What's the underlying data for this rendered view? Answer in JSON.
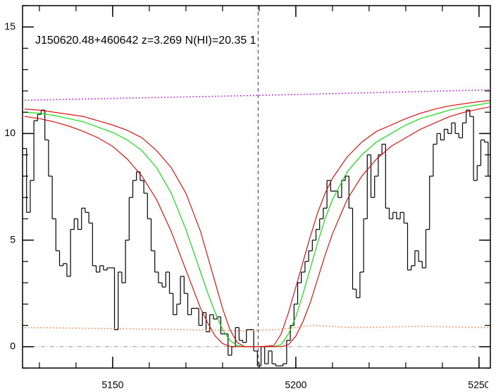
{
  "chart_data": {
    "type": "line",
    "annotation": "J150620.48+460642 z=3.269 N(HI)=20.35 1",
    "xlim": [
      5125.4,
      5253.1
    ],
    "ylim": [
      -1,
      16
    ],
    "xticks": [
      5150,
      5200,
      5250
    ],
    "yticks": [
      0,
      5,
      10,
      15
    ],
    "xminor_step": 10,
    "yminor_step": 1,
    "hlines": [
      0
    ],
    "vlines": [
      5189.7
    ],
    "x": [
      5126,
      5127,
      5128,
      5129,
      5130,
      5131,
      5132,
      5133,
      5134,
      5135,
      5136,
      5137,
      5138,
      5139,
      5140,
      5141,
      5142,
      5143,
      5144,
      5145,
      5146,
      5147,
      5148,
      5149,
      5150,
      5151,
      5152,
      5153,
      5154,
      5155,
      5156,
      5157,
      5158,
      5159,
      5160,
      5161,
      5162,
      5163,
      5164,
      5165,
      5166,
      5167,
      5168,
      5169,
      5170,
      5171,
      5172,
      5173,
      5174,
      5175,
      5176,
      5177,
      5178,
      5179,
      5180,
      5181,
      5182,
      5183,
      5184,
      5185,
      5186,
      5187,
      5188,
      5189,
      5190,
      5191,
      5192,
      5193,
      5194,
      5195,
      5196,
      5197,
      5198,
      5199,
      5200,
      5201,
      5202,
      5203,
      5204,
      5205,
      5206,
      5207,
      5208,
      5209,
      5210,
      5211,
      5212,
      5213,
      5214,
      5215,
      5216,
      5217,
      5218,
      5219,
      5220,
      5221,
      5222,
      5223,
      5224,
      5225,
      5226,
      5227,
      5228,
      5229,
      5230,
      5231,
      5232,
      5233,
      5234,
      5235,
      5236,
      5237,
      5238,
      5239,
      5240,
      5241,
      5242,
      5243,
      5244,
      5245,
      5246,
      5247,
      5248,
      5249,
      5250,
      5251,
      5252,
      5253
    ],
    "series": [
      {
        "color": "#000000",
        "style": "step",
        "values": [
          9.3,
          6.3,
          7.8,
          10.6,
          10.9,
          11.1,
          9.7,
          8.0,
          6.0,
          4.5,
          3.8,
          3.9,
          3.3,
          5.5,
          6.0,
          5.5,
          6.5,
          6.3,
          5.8,
          3.8,
          3.5,
          3.8,
          3.6,
          3.7,
          3.7,
          0.8,
          3.5,
          3.0,
          5.0,
          7.0,
          7.8,
          8.2,
          7.8,
          7.2,
          6.0,
          4.5,
          3.5,
          3.0,
          2.8,
          3.5,
          2.5,
          1.5,
          2.0,
          3.3,
          2.5,
          1.5,
          1.8,
          1.8,
          1.0,
          1.6,
          0.7,
          1.5,
          1.3,
          1.4,
          0.6,
          0.6,
          -0.4,
          0.0,
          0.9,
          0.3,
          0.2,
          0.8,
          0.8,
          -0.2,
          -0.9,
          0.0,
          -0.8,
          -0.2,
          -0.8,
          -0.9,
          -0.9,
          -0.8,
          0.3,
          1.0,
          2.0,
          3.0,
          3.5,
          4.0,
          4.5,
          5.0,
          5.5,
          6.0,
          6.5,
          7.8,
          7.3,
          7.3,
          7.0,
          7.8,
          8.0,
          6.5,
          2.7,
          2.3,
          3.5,
          6.0,
          9.0,
          7.0,
          8.0,
          9.0,
          9.5,
          6.5,
          6.0,
          6.3,
          6.0,
          6.3,
          5.8,
          3.6,
          3.8,
          4.5,
          4.0,
          3.7,
          5.5,
          8.0,
          9.5,
          10.0,
          9.7,
          10.2,
          10.0,
          10.5,
          10.0,
          9.8,
          10.5,
          11.1,
          10.8,
          7.8,
          8.5,
          9.7,
          9.6,
          8.0
        ]
      },
      {
        "color": "#00dd00",
        "style": "solid",
        "x": [
          5126,
          5130,
          5134,
          5138,
          5142,
          5146,
          5150,
          5154,
          5158,
          5162,
          5166,
          5170,
          5174,
          5176,
          5178,
          5180,
          5182,
          5184,
          5186,
          5190,
          5194,
          5196,
          5198,
          5200,
          5202,
          5204,
          5206,
          5208,
          5210,
          5214,
          5218,
          5222,
          5226,
          5230,
          5234,
          5238,
          5242,
          5246,
          5250,
          5253
        ],
        "values": [
          11.0,
          10.95,
          10.85,
          10.7,
          10.55,
          10.3,
          10.05,
          9.7,
          9.2,
          8.4,
          7.2,
          5.5,
          3.5,
          2.5,
          1.6,
          0.8,
          0.3,
          0.05,
          0,
          0,
          0,
          0.1,
          0.6,
          1.4,
          2.5,
          3.7,
          4.9,
          6.0,
          6.9,
          8.2,
          9.0,
          9.6,
          10.0,
          10.4,
          10.7,
          10.9,
          11.1,
          11.25,
          11.35,
          11.45
        ]
      },
      {
        "color": "#dd0000",
        "style": "solid",
        "x": [
          5126,
          5130,
          5134,
          5138,
          5142,
          5146,
          5150,
          5154,
          5158,
          5162,
          5166,
          5170,
          5174,
          5176,
          5178,
          5180,
          5182,
          5184,
          5186,
          5190,
          5194,
          5196,
          5198,
          5200,
          5202,
          5204,
          5206,
          5208,
          5210,
          5214,
          5218,
          5222,
          5226,
          5230,
          5234,
          5238,
          5242,
          5246,
          5250,
          5253
        ],
        "values": [
          11.15,
          11.1,
          11.0,
          10.9,
          10.8,
          10.6,
          10.4,
          10.15,
          9.8,
          9.2,
          8.4,
          7.2,
          5.4,
          4.2,
          3.0,
          1.8,
          0.8,
          0.2,
          0,
          0,
          0.05,
          0.6,
          1.6,
          2.8,
          4.0,
          5.2,
          6.3,
          7.2,
          7.9,
          8.9,
          9.6,
          10.1,
          10.4,
          10.7,
          10.95,
          11.15,
          11.3,
          11.4,
          11.5,
          11.55
        ]
      },
      {
        "color": "#dd0000",
        "style": "solid",
        "x": [
          5126,
          5130,
          5134,
          5138,
          5142,
          5146,
          5150,
          5154,
          5158,
          5162,
          5166,
          5170,
          5174,
          5176,
          5178,
          5180,
          5182,
          5184,
          5186,
          5190,
          5194,
          5196,
          5198,
          5200,
          5202,
          5204,
          5206,
          5208,
          5210,
          5214,
          5218,
          5222,
          5226,
          5230,
          5234,
          5238,
          5242,
          5246,
          5250,
          5253
        ],
        "values": [
          10.8,
          10.7,
          10.55,
          10.35,
          10.1,
          9.8,
          9.4,
          8.8,
          8.0,
          6.9,
          5.4,
          3.6,
          1.8,
          1.1,
          0.5,
          0.15,
          0.02,
          0,
          0,
          0,
          0,
          0,
          0.1,
          0.5,
          1.2,
          2.1,
          3.2,
          4.3,
          5.3,
          6.9,
          8.0,
          8.8,
          9.4,
          9.8,
          10.2,
          10.5,
          10.8,
          11.0,
          11.15,
          11.25
        ]
      },
      {
        "color": "#cc00ff",
        "style": "dotted",
        "x": [
          5126,
          5190,
          5253
        ],
        "values": [
          11.56,
          11.79,
          12.05
        ]
      },
      {
        "color": "#ff7f3f",
        "style": "dotted",
        "x": [
          5126,
          5150,
          5170,
          5185,
          5195,
          5205,
          5215,
          5235,
          5253
        ],
        "values": [
          0.9,
          0.85,
          0.8,
          0.75,
          0.8,
          1.0,
          0.9,
          0.95,
          0.9
        ]
      }
    ]
  }
}
